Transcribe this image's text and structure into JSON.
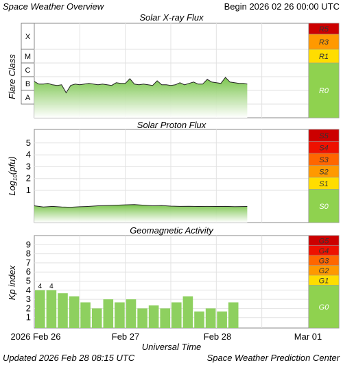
{
  "header": {
    "title": "Space Weather Overview",
    "begin": "Begin 2026 02 26 00:00 UTC"
  },
  "footer": {
    "updated": "Updated 2026 Feb 28 08:15 UTC",
    "credit": "Space Weather Prediction Center"
  },
  "x_axis": {
    "label": "Universal Time",
    "ticks": [
      "2026 Feb 26",
      "Feb 27",
      "Feb 28",
      "Mar 01"
    ]
  },
  "colors": {
    "fill_green": "#7dc143",
    "bar_green": "#8ed05f",
    "r0_green": "#8fd24f",
    "yellow": "#ffdd00",
    "orange": "#ff9900",
    "dark_orange": "#ff6600",
    "red": "#ee1100",
    "dark_red": "#cc0000"
  },
  "chart_data": [
    {
      "type": "area",
      "title": "Solar X-ray Flux",
      "ylabel": "Flare Class",
      "y_classes": [
        "X",
        "M",
        "C",
        "B",
        "A"
      ],
      "scale_levels": [
        {
          "label": "R5",
          "color": "#cc0000"
        },
        {
          "label": "R3",
          "color": "#ff9900"
        },
        {
          "label": "R1",
          "color": "#ffdd00"
        },
        {
          "label": "R0",
          "color": "#8fd24f"
        }
      ],
      "x_days": [
        0,
        0.05,
        0.1,
        0.15,
        0.2,
        0.25,
        0.3,
        0.35,
        0.4,
        0.45,
        0.5,
        0.55,
        0.6,
        0.65,
        0.7,
        0.75,
        0.8,
        0.85,
        0.9,
        0.95,
        1.0,
        1.05,
        1.1,
        1.15,
        1.2,
        1.25,
        1.3,
        1.35,
        1.4,
        1.45,
        1.5,
        1.55,
        1.6,
        1.65,
        1.7,
        1.75,
        1.8,
        1.85,
        1.9,
        1.95,
        2.0,
        2.05,
        2.1,
        2.15,
        2.2,
        2.25,
        2.3,
        2.34
      ],
      "flux_class_level": [
        2.15,
        1.95,
        1.95,
        2.0,
        1.9,
        1.85,
        1.9,
        1.3,
        1.85,
        1.95,
        1.9,
        1.95,
        2.0,
        1.95,
        1.9,
        1.95,
        1.9,
        1.85,
        2.05,
        2.0,
        2.0,
        2.35,
        1.95,
        1.9,
        1.95,
        1.9,
        1.85,
        2.2,
        1.9,
        1.9,
        1.85,
        1.9,
        2.05,
        1.9,
        2.0,
        2.1,
        1.95,
        1.95,
        2.3,
        2.1,
        2.05,
        2.0,
        2.45,
        2.1,
        2.05,
        2.0,
        2.0,
        1.95
      ]
    },
    {
      "type": "area",
      "title": "Solar Proton Flux",
      "ylabel": "Log10(pfu)",
      "ylim": [
        -1,
        6
      ],
      "yticks": [
        1,
        2,
        3,
        4,
        5
      ],
      "scale_levels": [
        {
          "label": "S5",
          "color": "#cc0000"
        },
        {
          "label": "S4",
          "color": "#ee1100"
        },
        {
          "label": "S3",
          "color": "#ff6600"
        },
        {
          "label": "S2",
          "color": "#ff9900"
        },
        {
          "label": "S1",
          "color": "#ffdd00"
        },
        {
          "label": "S0",
          "color": "#8fd24f"
        }
      ],
      "x_days": [
        0,
        0.1,
        0.2,
        0.3,
        0.4,
        0.5,
        0.6,
        0.7,
        0.8,
        0.9,
        1.0,
        1.1,
        1.2,
        1.3,
        1.4,
        1.5,
        1.6,
        1.7,
        1.8,
        1.9,
        2.0,
        2.1,
        2.2,
        2.34
      ],
      "log_flux": [
        -0.3,
        -0.4,
        -0.35,
        -0.4,
        -0.42,
        -0.38,
        -0.35,
        -0.3,
        -0.28,
        -0.25,
        -0.22,
        -0.2,
        -0.25,
        -0.3,
        -0.28,
        -0.33,
        -0.35,
        -0.34,
        -0.36,
        -0.35,
        -0.36,
        -0.35,
        -0.37,
        -0.36
      ]
    },
    {
      "type": "bar",
      "title": "Geomagnetic Activity",
      "ylabel": "Kp index",
      "ylim": [
        0,
        10
      ],
      "yticks": [
        1,
        2,
        3,
        4,
        5,
        6,
        7,
        8,
        9
      ],
      "scale_levels": [
        {
          "label": "G5",
          "color": "#cc0000"
        },
        {
          "label": "G4",
          "color": "#ee1100"
        },
        {
          "label": "G3",
          "color": "#ff6600"
        },
        {
          "label": "G2",
          "color": "#ff9900"
        },
        {
          "label": "G1",
          "color": "#ffdd00"
        },
        {
          "label": "G0",
          "color": "#8fd24f"
        }
      ],
      "kp": [
        4.0,
        4.0,
        3.67,
        3.33,
        2.67,
        2.0,
        3.0,
        2.67,
        3.0,
        2.0,
        2.33,
        2.0,
        2.67,
        3.33,
        1.67,
        2.0,
        1.67,
        2.67
      ],
      "bar_labels": [
        "4",
        "4"
      ]
    }
  ]
}
